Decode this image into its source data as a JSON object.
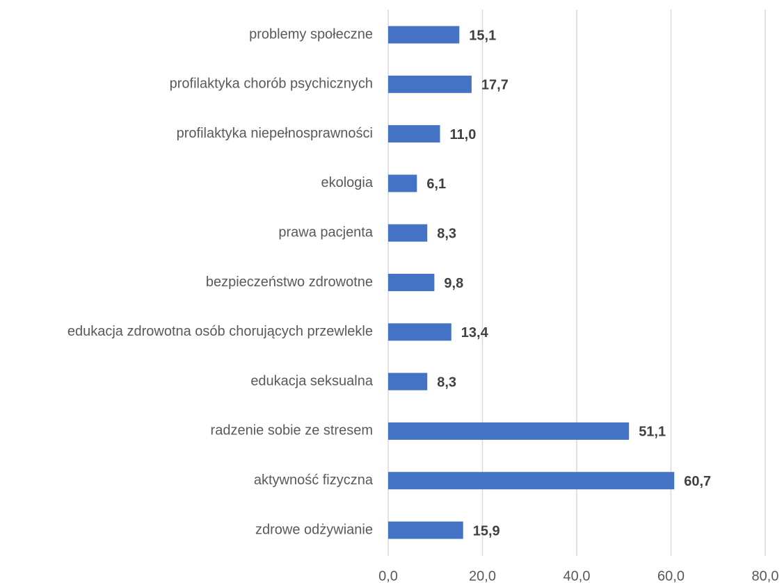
{
  "chart_data": {
    "type": "barh",
    "categories": [
      "problemy społeczne",
      "profilaktyka chorób psychicznych",
      "profilaktyka niepełnosprawności",
      "ekologia",
      "prawa pacjenta",
      "bezpieczeństwo zdrowotne",
      "edukacja zdrowotna osób chorujących przewlekle",
      "edukacja seksualna",
      "radzenie sobie ze stresem",
      "aktywność fizyczna",
      "zdrowe odżywianie"
    ],
    "values": [
      15.1,
      17.7,
      11.0,
      6.1,
      8.3,
      9.8,
      13.4,
      8.3,
      51.1,
      60.7,
      15.9
    ],
    "value_labels": [
      "15,1",
      "17,7",
      "11,0",
      "6,1",
      "8,3",
      "9,8",
      "13,4",
      "8,3",
      "51,1",
      "60,7",
      "15,9"
    ],
    "color": "#4472c4",
    "xlim": [
      0,
      80
    ],
    "xticks": [
      {
        "value": 0,
        "label": "0,0"
      },
      {
        "value": 20,
        "label": "20,0"
      },
      {
        "value": 40,
        "label": "40,0"
      },
      {
        "value": 60,
        "label": "60,0"
      },
      {
        "value": 80,
        "label": "80,0"
      }
    ],
    "grid": true
  }
}
